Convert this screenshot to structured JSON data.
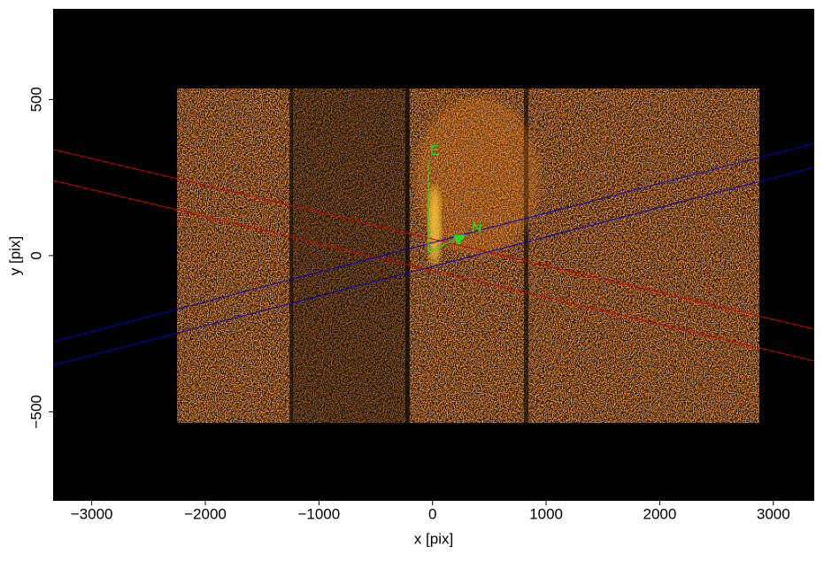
{
  "chart_data": {
    "type": "image",
    "xlabel": "x [pix]",
    "ylabel": "y [pix]",
    "xlim": [
      -3340,
      3360
    ],
    "ylim": [
      -785,
      790
    ],
    "xticks": [
      {
        "value": -3000,
        "label": "−3000"
      },
      {
        "value": -2000,
        "label": "−2000"
      },
      {
        "value": -1000,
        "label": "−1000"
      },
      0,
      1000,
      2000,
      3000
    ],
    "yticks": [
      {
        "value": -500,
        "label": "−500"
      },
      0,
      500
    ],
    "series": [
      {
        "color": "#d00000",
        "x": [
          -3340,
          3360
        ],
        "values": [
          340,
          -235
        ]
      },
      {
        "color": "#d00000",
        "x": [
          -3340,
          3360
        ],
        "values": [
          241,
          -337
        ]
      },
      {
        "color": "#0000c8",
        "x": [
          -3340,
          3360
        ],
        "values": [
          -275,
          360
        ]
      },
      {
        "color": "#0000c8",
        "x": [
          -3340,
          3360
        ],
        "values": [
          -351,
          283
        ]
      }
    ],
    "annotations": [
      "E",
      "N"
    ]
  }
}
